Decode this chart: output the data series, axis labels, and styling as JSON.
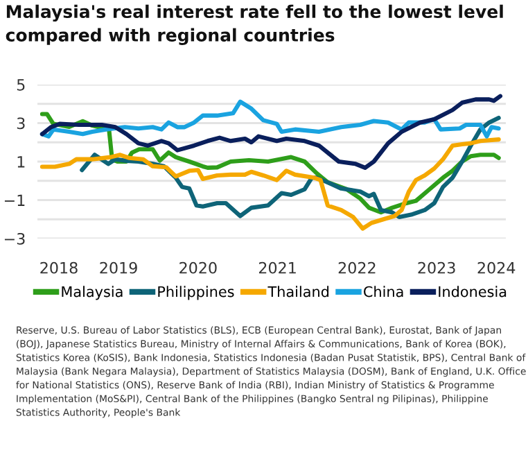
{
  "chart_data": {
    "type": "line",
    "title": "Malaysia's real interest rate fell to the lowest level compared with regional countries",
    "xlim": [
      2017.98,
      2023.87
    ],
    "xticks": [
      {
        "value": 2018.25,
        "label": "2018"
      },
      2019,
      2020,
      2021,
      2022,
      2023,
      {
        "value": 2023.75,
        "label": "2024"
      }
    ],
    "ylim": [
      -3,
      5
    ],
    "yticks": [
      {
        "value": -3,
        "label": "−3"
      },
      {
        "value": -2,
        "label": null
      },
      {
        "value": -1,
        "label": "−1"
      },
      {
        "value": 0,
        "label": null
      },
      1,
      {
        "value": 2,
        "label": null
      },
      3,
      {
        "value": 4,
        "label": null
      },
      5
    ],
    "grid": "y",
    "legend": "bottom",
    "marker": "none",
    "line_style": "solid",
    "series": [
      {
        "name": "Malaysia",
        "color": "#2e9e1a",
        "x": [
          2018.04,
          2018.1,
          2018.18,
          2018.38,
          2018.55,
          2018.67,
          2018.88,
          2018.92,
          2018.99,
          2019.1,
          2019.17,
          2019.26,
          2019.43,
          2019.49,
          2019.52,
          2019.63,
          2019.72,
          2019.89,
          2020.06,
          2020.12,
          2020.24,
          2020.41,
          2020.64,
          2020.88,
          2021.17,
          2021.34,
          2021.49,
          2021.63,
          2021.87,
          2022.04,
          2022.15,
          2022.3,
          2022.44,
          2022.62,
          2022.74,
          2022.91,
          2023.08,
          2023.2,
          2023.32,
          2023.43,
          2023.55,
          2023.72,
          2023.78
        ],
        "values": [
          3.47,
          3.47,
          2.96,
          2.8,
          3.1,
          2.87,
          2.67,
          1.1,
          1.0,
          1.0,
          1.47,
          1.64,
          1.64,
          1.24,
          1.05,
          1.47,
          1.23,
          1.0,
          0.75,
          0.68,
          0.7,
          1.0,
          1.07,
          1.0,
          1.23,
          1.0,
          0.4,
          -0.08,
          -0.44,
          -0.92,
          -1.4,
          -1.64,
          -1.4,
          -1.16,
          -1.04,
          -0.44,
          0.16,
          0.52,
          1.0,
          1.28,
          1.35,
          1.35,
          1.19
        ]
      },
      {
        "name": "Philippines",
        "color": "#0e6478",
        "x": [
          2018.54,
          2018.7,
          2018.87,
          2018.96,
          2019.1,
          2019.25,
          2019.43,
          2019.57,
          2019.72,
          2019.8,
          2019.89,
          2019.98,
          2020.06,
          2020.24,
          2020.35,
          2020.53,
          2020.67,
          2020.88,
          2021.05,
          2021.17,
          2021.34,
          2021.43,
          2021.49,
          2021.63,
          2021.8,
          2022.04,
          2022.15,
          2022.21,
          2022.3,
          2022.44,
          2022.53,
          2022.68,
          2022.85,
          2022.97,
          2023.08,
          2023.2,
          2023.32,
          2023.43,
          2023.55,
          2023.66,
          2023.78
        ],
        "values": [
          0.56,
          1.35,
          0.88,
          1.12,
          1.04,
          1.0,
          0.88,
          0.76,
          0.16,
          -0.32,
          -0.4,
          -1.28,
          -1.33,
          -1.16,
          -1.16,
          -1.83,
          -1.4,
          -1.28,
          -0.64,
          -0.73,
          -0.44,
          0.16,
          0.16,
          -0.08,
          -0.4,
          -0.56,
          -0.8,
          -0.68,
          -1.52,
          -1.64,
          -1.88,
          -1.76,
          -1.52,
          -1.16,
          -0.32,
          0.16,
          1.0,
          1.83,
          2.67,
          3.03,
          3.27
        ]
      },
      {
        "name": "Thailand",
        "color": "#f5a800",
        "x": [
          2018.04,
          2018.2,
          2018.38,
          2018.47,
          2018.67,
          2018.9,
          2019.02,
          2019.13,
          2019.31,
          2019.43,
          2019.6,
          2019.72,
          2019.89,
          2020.0,
          2020.06,
          2020.24,
          2020.41,
          2020.59,
          2020.67,
          2020.82,
          2020.99,
          2021.11,
          2021.22,
          2021.46,
          2021.54,
          2021.63,
          2021.8,
          2021.95,
          2022.07,
          2022.18,
          2022.33,
          2022.47,
          2022.56,
          2022.65,
          2022.74,
          2022.85,
          2022.97,
          2023.08,
          2023.2,
          2023.32,
          2023.43,
          2023.55,
          2023.78
        ],
        "values": [
          0.73,
          0.73,
          0.88,
          1.12,
          1.12,
          1.23,
          1.35,
          1.19,
          1.12,
          0.76,
          0.7,
          0.23,
          0.52,
          0.56,
          0.1,
          0.28,
          0.32,
          0.32,
          0.47,
          0.28,
          0.04,
          0.52,
          0.32,
          0.16,
          0.04,
          -1.28,
          -1.52,
          -1.88,
          -2.48,
          -2.19,
          -2.0,
          -1.83,
          -1.52,
          -0.56,
          0.04,
          0.28,
          0.64,
          1.12,
          1.83,
          1.9,
          1.95,
          2.07,
          2.15
        ]
      },
      {
        "name": "China",
        "color": "#1aa3e0",
        "x": [
          2018.04,
          2018.12,
          2018.18,
          2018.38,
          2018.55,
          2018.67,
          2018.84,
          2019.08,
          2019.25,
          2019.43,
          2019.54,
          2019.63,
          2019.74,
          2019.83,
          2019.95,
          2020.06,
          2020.24,
          2020.44,
          2020.53,
          2020.67,
          2020.82,
          2020.99,
          2021.05,
          2021.22,
          2021.52,
          2021.8,
          2022.04,
          2022.21,
          2022.39,
          2022.56,
          2022.65,
          2022.85,
          2022.97,
          2023.05,
          2023.29,
          2023.37,
          2023.55,
          2023.63,
          2023.69,
          2023.78
        ],
        "values": [
          2.43,
          2.31,
          2.67,
          2.55,
          2.43,
          2.55,
          2.67,
          2.79,
          2.72,
          2.79,
          2.67,
          3.03,
          2.79,
          2.79,
          3.03,
          3.39,
          3.39,
          3.51,
          4.11,
          3.75,
          3.15,
          2.96,
          2.55,
          2.67,
          2.55,
          2.79,
          2.91,
          3.11,
          3.03,
          2.67,
          3.03,
          3.03,
          3.2,
          2.67,
          2.72,
          2.91,
          2.91,
          2.31,
          2.79,
          2.72
        ]
      },
      {
        "name": "Indonesia",
        "color": "#0a1f5c",
        "x": [
          2018.04,
          2018.15,
          2018.26,
          2018.5,
          2018.79,
          2018.96,
          2019.1,
          2019.25,
          2019.37,
          2019.54,
          2019.63,
          2019.74,
          2019.95,
          2020.12,
          2020.27,
          2020.41,
          2020.59,
          2020.67,
          2020.76,
          2020.99,
          2021.11,
          2021.34,
          2021.52,
          2021.77,
          2021.98,
          2022.1,
          2022.21,
          2022.39,
          2022.56,
          2022.79,
          2022.97,
          2023.2,
          2023.32,
          2023.49,
          2023.66,
          2023.72,
          2023.8
        ],
        "values": [
          2.43,
          2.79,
          2.96,
          2.91,
          2.91,
          2.79,
          2.43,
          1.95,
          1.83,
          2.07,
          1.95,
          1.59,
          1.83,
          2.07,
          2.24,
          2.07,
          2.19,
          2.0,
          2.31,
          2.07,
          2.19,
          2.07,
          1.83,
          1.0,
          0.88,
          0.68,
          1.0,
          1.95,
          2.55,
          3.03,
          3.2,
          3.68,
          4.06,
          4.23,
          4.23,
          4.16,
          4.4
        ]
      }
    ],
    "annotations": [
      "Reserve, U.S. Bureau of Labor Statistics (BLS), ECB (European Central Bank), Eurostat, Bank of Japan (BOJ), Japanese Statistics Bureau, Ministry of Internal Affairs & Communications, Bank of Korea (BOK), Statistics Korea (KoSIS), Bank Indonesia, Statistics Indonesia (Badan Pusat Statistik, BPS), Central Bank of Malaysia (Bank Negara Malaysia), Department of Statistics Malaysia (DOSM), Bank of England, U.K. Office for National Statistics (ONS), Reserve Bank of India (RBI), Indian Ministry of Statistics & Programme Implementation (MoS&PI), Central Bank of the Philippines (Bangko Sentral ng Pilipinas), Philippine Statistics Authority, People's Bank"
    ]
  }
}
